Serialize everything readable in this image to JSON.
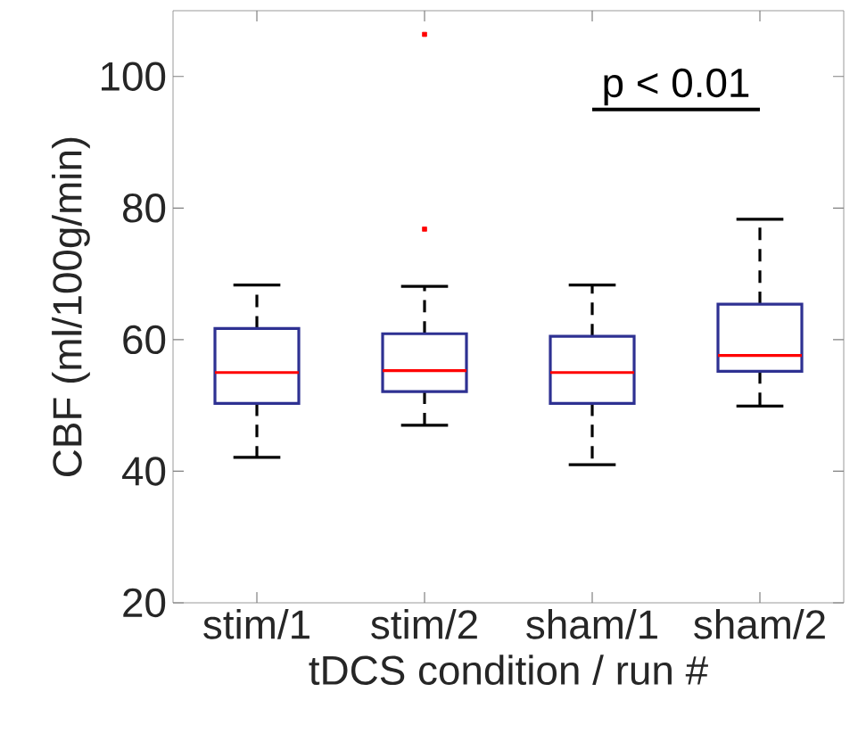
{
  "chart_data": {
    "type": "box",
    "categories": [
      "stim/1",
      "stim/2",
      "sham/1",
      "sham/2"
    ],
    "xlabel": "tDCS condition / run #",
    "ylabel": "CBF (ml/100g/min)",
    "ylim": [
      20,
      110
    ],
    "yticks": [
      20,
      40,
      60,
      80,
      100
    ],
    "series": [
      {
        "color": "#2e3192",
        "boxes": [
          {
            "low": 42.1,
            "q1": 50.3,
            "median": 55.0,
            "q3": 61.7,
            "high": 68.3
          },
          {
            "low": 47.0,
            "q1": 52.1,
            "median": 55.3,
            "q3": 60.9,
            "high": 68.1,
            "outliers": [
              76.8,
              106.4
            ]
          },
          {
            "low": 41.0,
            "q1": 50.3,
            "median": 55.0,
            "q3": 60.5,
            "high": 68.3
          },
          {
            "low": 49.9,
            "q1": 55.2,
            "median": 57.6,
            "q3": 65.4,
            "high": 78.3
          }
        ]
      }
    ],
    "annotations": [
      "p < 0.01"
    ],
    "grid": false
  }
}
